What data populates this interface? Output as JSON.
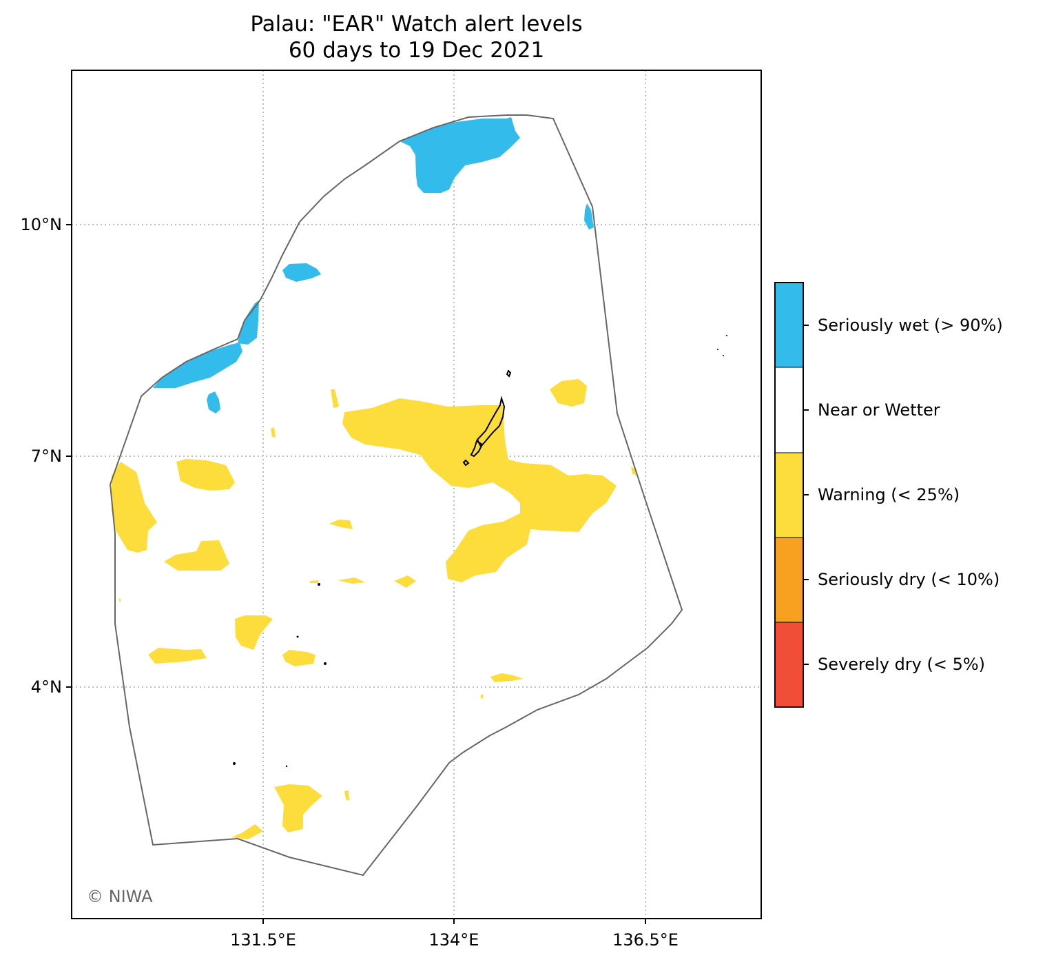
{
  "title": "Palau: \"EAR\" Watch alert levels",
  "subtitle": "60 days to 19 Dec 2021",
  "copyright": "© NIWA",
  "axes": {
    "x_ticks": [
      "131.5°E",
      "134°E",
      "136.5°E"
    ],
    "y_ticks": [
      "10°N",
      "7°N",
      "4°N"
    ]
  },
  "legend": {
    "items": [
      {
        "label": "Seriously wet (> 90%)",
        "color": "#33bbec"
      },
      {
        "label": "Near or Wetter",
        "color": "#ffffff"
      },
      {
        "label": "Warning (< 25%)",
        "color": "#fddd3c"
      },
      {
        "label": "Seriously dry (< 10%)",
        "color": "#f8a020"
      },
      {
        "label": "Severely dry (< 5%)",
        "color": "#f04e37"
      }
    ]
  },
  "colors": {
    "wet": "#33bbec",
    "warning": "#fddd3c",
    "boundary": "#666666",
    "land": "#000000",
    "grid": "#aaaaaa"
  }
}
